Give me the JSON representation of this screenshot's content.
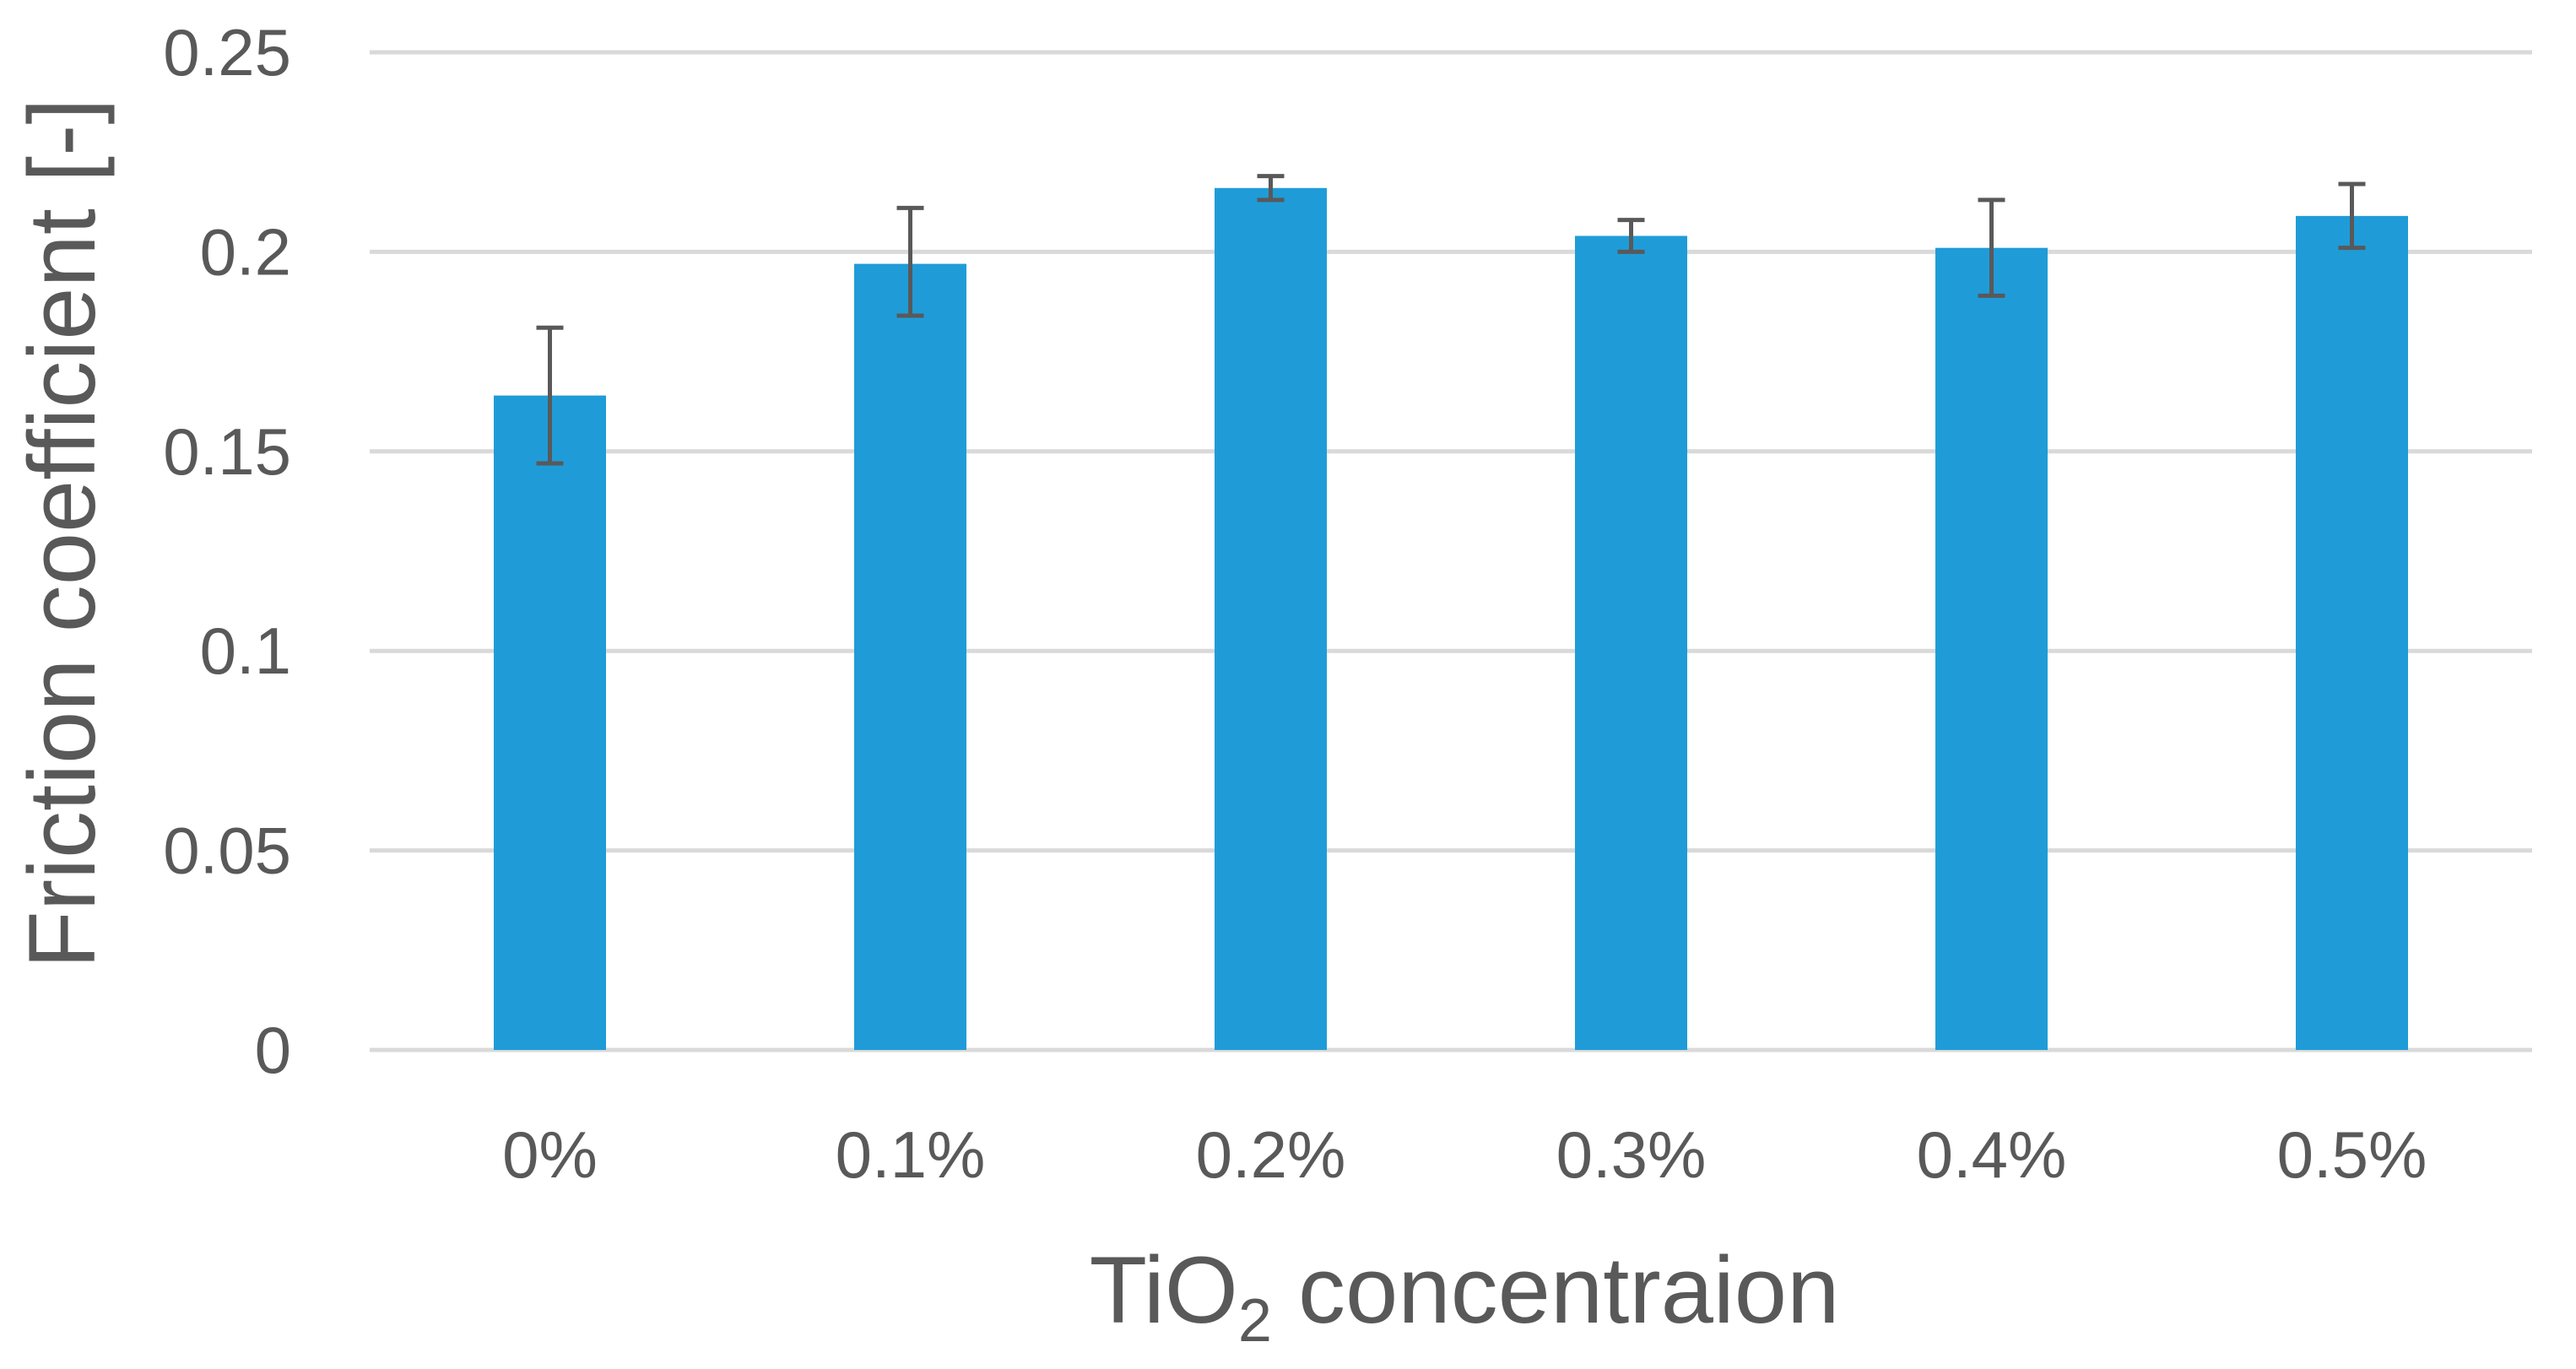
{
  "chart_data": {
    "type": "bar",
    "categories": [
      "0%",
      "0.1%",
      "0.2%",
      "0.3%",
      "0.4%",
      "0.5%"
    ],
    "values": [
      0.164,
      0.197,
      0.216,
      0.204,
      0.201,
      0.209
    ],
    "error_low": [
      0.147,
      0.184,
      0.213,
      0.2,
      0.189,
      0.201
    ],
    "error_high": [
      0.181,
      0.211,
      0.219,
      0.208,
      0.213,
      0.217
    ],
    "y_ticks": [
      "0",
      "0.05",
      "0.1",
      "0.15",
      "0.2",
      "0.25"
    ],
    "ylim": [
      0,
      0.25
    ],
    "ylabel": "Friction coefficient [-]",
    "xlabel_main": "TiO",
    "xlabel_sub": "2",
    "xlabel_rest": " concentraion",
    "grid": true,
    "bar_color": "#1f9cd8",
    "error_bar_color": "#595959"
  }
}
